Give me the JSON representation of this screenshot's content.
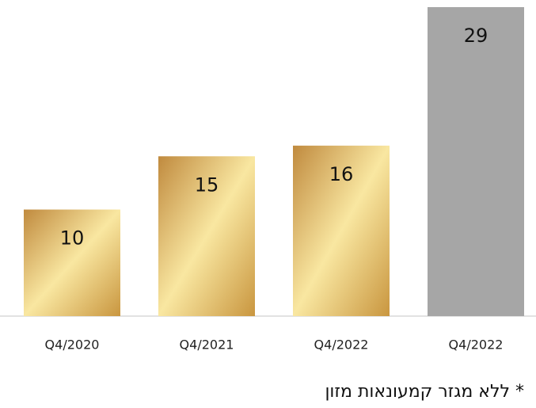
{
  "chart_data": {
    "type": "bar",
    "categories": [
      "Q4/2020",
      "Q4/2021",
      "Q4/2022",
      "Q4/2022"
    ],
    "values": [
      10,
      15,
      16,
      29
    ],
    "colors": [
      [
        "#c08a3e",
        "#f9e7a1",
        "#c9963f"
      ],
      [
        "#c08a3e",
        "#f9e7a1",
        "#c9963f"
      ],
      [
        "#c08a3e",
        "#f9e7a1",
        "#c9963f"
      ],
      [
        "#a6a6a6"
      ]
    ],
    "ylim": [
      0,
      29
    ]
  },
  "footnote": "* ללא מגזר קמעונאות מזון"
}
